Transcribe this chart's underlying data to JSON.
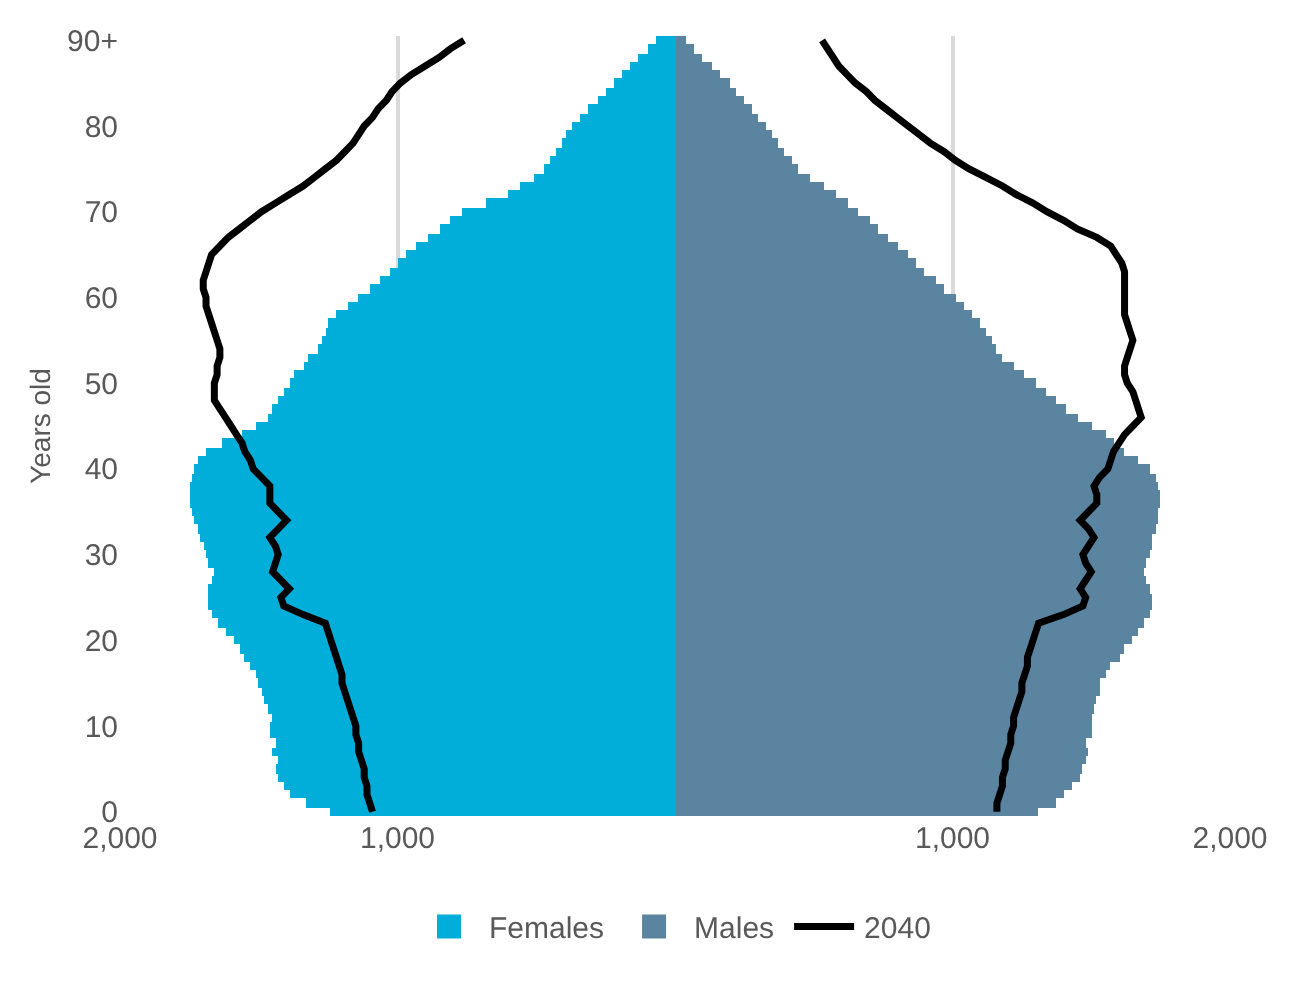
{
  "chart_data": {
    "type": "bar",
    "orientation": "horizontal",
    "stacked": true,
    "ylabel": "Years old",
    "categories": [
      "90+",
      null,
      null,
      null,
      null,
      null,
      null,
      null,
      null,
      null,
      "80",
      null,
      null,
      null,
      null,
      null,
      null,
      null,
      null,
      null,
      "70",
      null,
      null,
      null,
      null,
      null,
      null,
      null,
      null,
      null,
      "60",
      null,
      null,
      null,
      null,
      null,
      null,
      null,
      null,
      null,
      "50",
      null,
      null,
      null,
      null,
      null,
      null,
      null,
      null,
      null,
      "40",
      null,
      null,
      null,
      null,
      null,
      null,
      null,
      null,
      null,
      "30",
      null,
      null,
      null,
      null,
      null,
      null,
      null,
      null,
      null,
      "20",
      null,
      null,
      null,
      null,
      null,
      null,
      null,
      null,
      null,
      "10",
      null,
      null,
      null,
      null,
      null,
      null,
      null,
      null,
      null,
      "0"
    ],
    "series": [
      {
        "name": "Females",
        "color": "#00aed9",
        "values": [
          -70,
          -100,
          -130,
          -160,
          -190,
          -220,
          -250,
          -280,
          -310,
          -340,
          -370,
          -390,
          -410,
          -430,
          -450,
          -470,
          -510,
          -560,
          -600,
          -680,
          -770,
          -810,
          -850,
          -890,
          -930,
          -970,
          -1000,
          -1030,
          -1060,
          -1100,
          -1140,
          -1180,
          -1220,
          -1250,
          -1260,
          -1270,
          -1290,
          -1320,
          -1340,
          -1370,
          -1390,
          -1410,
          -1430,
          -1450,
          -1470,
          -1510,
          -1560,
          -1630,
          -1690,
          -1720,
          -1730,
          -1740,
          -1750,
          -1750,
          -1750,
          -1740,
          -1730,
          -1720,
          -1710,
          -1700,
          -1690,
          -1680,
          -1660,
          -1670,
          -1680,
          -1680,
          -1680,
          -1670,
          -1650,
          -1620,
          -1590,
          -1570,
          -1550,
          -1530,
          -1510,
          -1500,
          -1490,
          -1480,
          -1470,
          -1450,
          -1460,
          -1460,
          -1440,
          -1450,
          -1430,
          -1440,
          -1430,
          -1410,
          -1390,
          -1330,
          -1240
        ]
      },
      {
        "name": "Males",
        "color": "#5b84a0",
        "values": [
          40,
          70,
          100,
          130,
          160,
          200,
          220,
          250,
          280,
          300,
          330,
          350,
          370,
          390,
          420,
          440,
          490,
          540,
          580,
          620,
          660,
          700,
          730,
          770,
          800,
          840,
          870,
          900,
          940,
          970,
          1010,
          1040,
          1070,
          1100,
          1120,
          1140,
          1160,
          1180,
          1220,
          1260,
          1300,
          1340,
          1370,
          1410,
          1450,
          1500,
          1550,
          1580,
          1620,
          1670,
          1710,
          1730,
          1740,
          1750,
          1750,
          1740,
          1740,
          1730,
          1720,
          1720,
          1710,
          1700,
          1690,
          1700,
          1710,
          1720,
          1720,
          1710,
          1690,
          1670,
          1650,
          1620,
          1600,
          1570,
          1550,
          1530,
          1530,
          1520,
          1510,
          1500,
          1500,
          1500,
          1480,
          1490,
          1480,
          1470,
          1460,
          1430,
          1400,
          1370,
          1310
        ]
      },
      {
        "name": "2040",
        "type": "line",
        "color": "#000000",
        "values": [
          -760,
          -810,
          -850,
          -900,
          -950,
          -990,
          -1020,
          -1040,
          -1070,
          -1090,
          -1120,
          -1140,
          -1160,
          -1190,
          -1220,
          -1260,
          -1300,
          -1340,
          -1390,
          -1440,
          -1490,
          -1530,
          -1570,
          -1610,
          -1640,
          -1670,
          -1680,
          -1690,
          -1700,
          -1700,
          -1690,
          -1690,
          -1680,
          -1670,
          -1660,
          -1650,
          -1640,
          -1640,
          -1650,
          -1650,
          -1660,
          -1660,
          -1660,
          -1640,
          -1620,
          -1600,
          -1580,
          -1560,
          -1550,
          -1530,
          -1520,
          -1490,
          -1460,
          -1460,
          -1460,
          -1430,
          -1400,
          -1430,
          -1460,
          -1440,
          -1430,
          -1440,
          -1450,
          -1420,
          -1390,
          -1420,
          -1410,
          -1340,
          -1260,
          -1250,
          -1240,
          -1230,
          -1220,
          -1210,
          -1200,
          -1200,
          -1190,
          -1180,
          -1170,
          -1160,
          -1150,
          -1150,
          -1140,
          -1140,
          -1130,
          -1120,
          -1120,
          -1110,
          -1110,
          -1100,
          -1090
        ]
      },
      {
        "type": "line",
        "color": "#000000",
        "values": [
          530,
          550,
          570,
          590,
          620,
          650,
          690,
          720,
          760,
          800,
          840,
          880,
          920,
          970,
          1010,
          1060,
          1120,
          1180,
          1230,
          1290,
          1340,
          1400,
          1450,
          1520,
          1570,
          1590,
          1610,
          1620,
          1620,
          1620,
          1620,
          1620,
          1620,
          1630,
          1640,
          1650,
          1640,
          1630,
          1620,
          1620,
          1630,
          1650,
          1660,
          1670,
          1680,
          1650,
          1620,
          1600,
          1580,
          1570,
          1560,
          1530,
          1510,
          1520,
          1520,
          1490,
          1460,
          1490,
          1510,
          1490,
          1470,
          1480,
          1500,
          1480,
          1460,
          1480,
          1470,
          1400,
          1310,
          1300,
          1290,
          1280,
          1270,
          1270,
          1260,
          1250,
          1250,
          1240,
          1230,
          1220,
          1220,
          1210,
          1210,
          1200,
          1190,
          1190,
          1180,
          1180,
          1170,
          1160,
          1160
        ]
      }
    ],
    "xlim": [
      -2000,
      2000
    ],
    "xticks": [
      {
        "value": -2000,
        "label": "2,000"
      },
      {
        "value": -1000,
        "label": "1,000"
      },
      {
        "value": 1000,
        "label": "1,000"
      },
      {
        "value": 2000,
        "label": "2,000"
      }
    ],
    "grid": "x",
    "legend": "bottom"
  }
}
